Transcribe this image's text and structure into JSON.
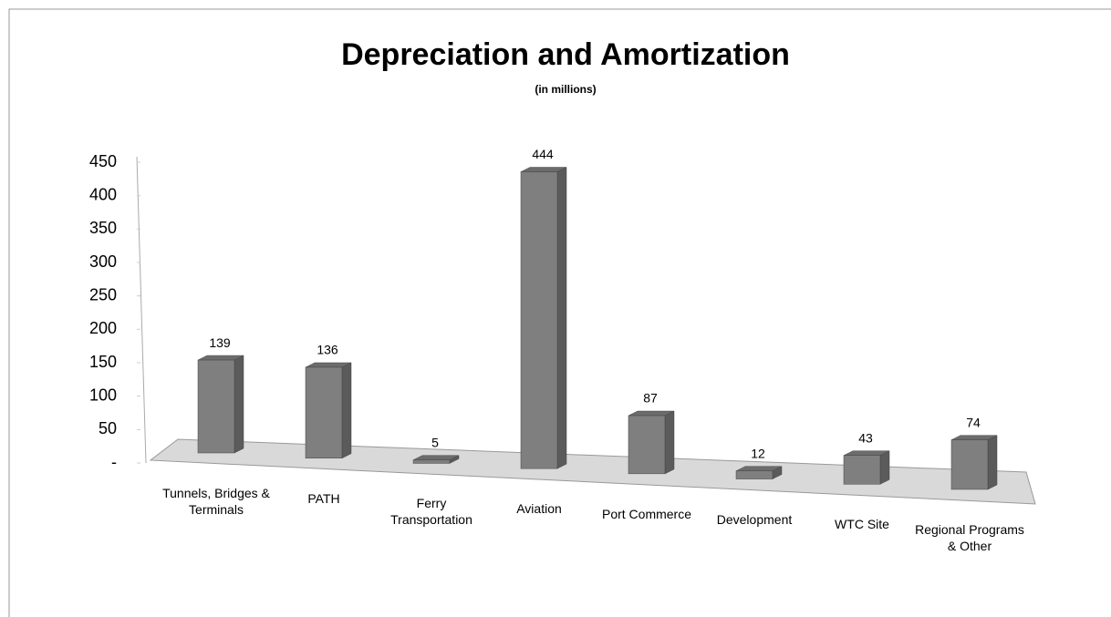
{
  "chart_data": {
    "type": "bar3d",
    "title": "Depreciation and Amortization",
    "subtitle": "(in millions)",
    "categories": [
      "Tunnels, Bridges & Terminals",
      "PATH",
      "Ferry Transportation",
      "Aviation",
      "Port Commerce",
      "Development",
      "WTC Site",
      "Regional Programs & Other"
    ],
    "values": [
      139,
      136,
      5,
      444,
      87,
      12,
      43,
      74
    ],
    "color": "#7f7f7f",
    "ylim": [
      0,
      450
    ],
    "yticks": [
      {
        "value": 0,
        "label": "-"
      },
      50,
      100,
      150,
      200,
      250,
      300,
      350,
      400,
      450
    ]
  }
}
